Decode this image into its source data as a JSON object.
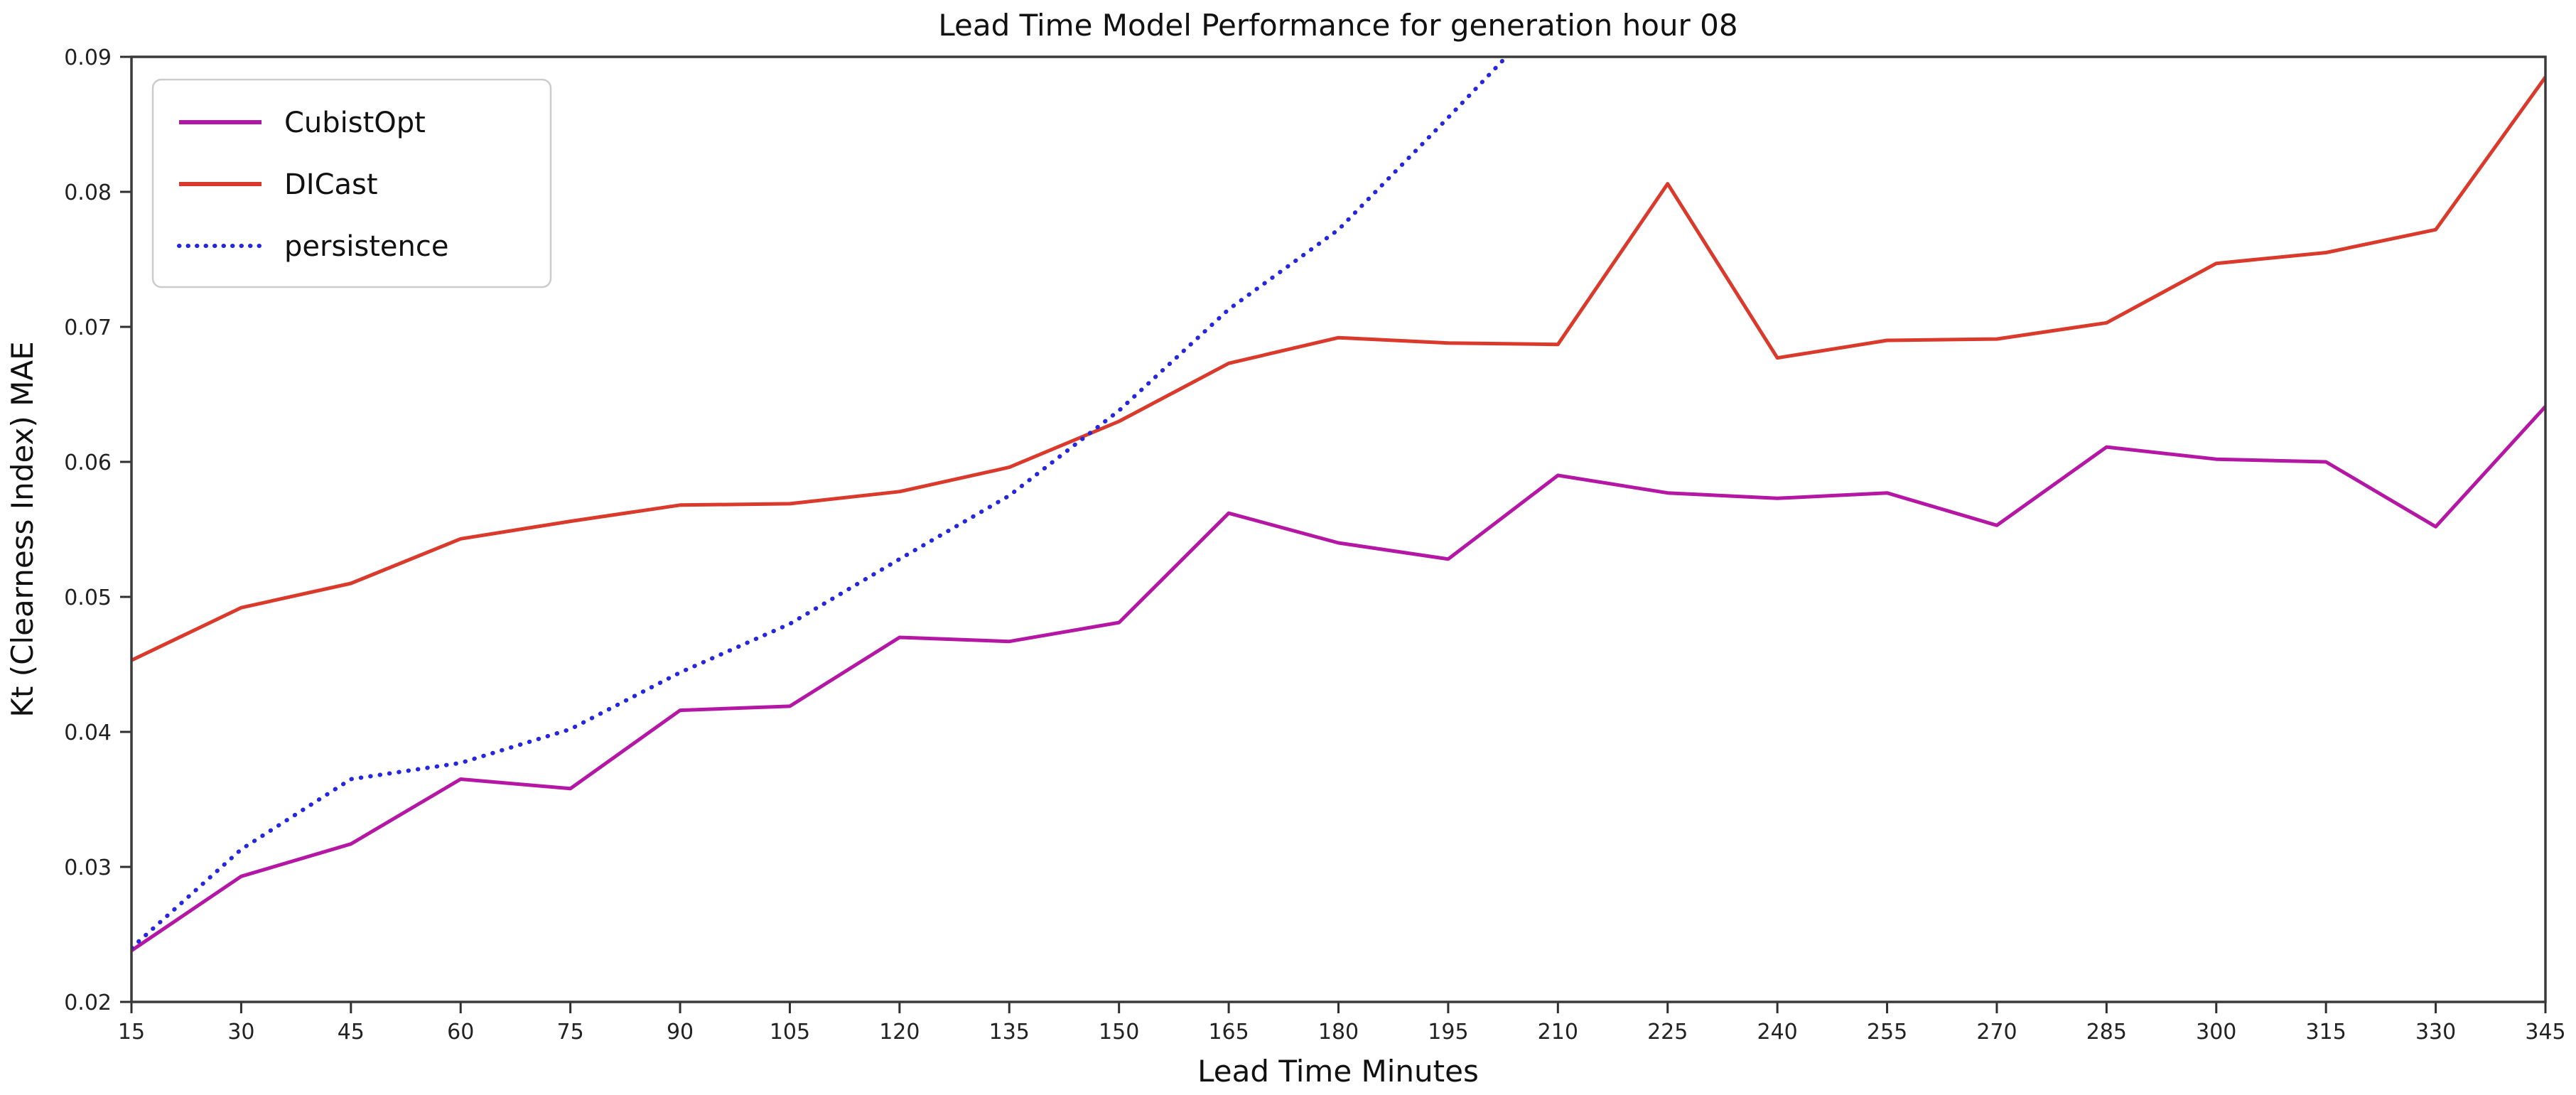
{
  "title": "Lead Time Model Performance for generation hour 08",
  "x_axis": {
    "label": "Lead Time Minutes",
    "ticks": [
      "15",
      "30",
      "45",
      "60",
      "75",
      "90",
      "105",
      "120",
      "135",
      "150",
      "165",
      "180",
      "195",
      "210",
      "225",
      "240",
      "255",
      "270",
      "285",
      "300",
      "315",
      "330",
      "345"
    ]
  },
  "y_axis": {
    "label": "Kt (Clearness Index) MAE",
    "ticks": [
      "0.02",
      "0.03",
      "0.04",
      "0.05",
      "0.06",
      "0.07",
      "0.08",
      "0.09"
    ]
  },
  "legend": {
    "position": "upper left",
    "entries": [
      "CubistOpt",
      "DICast",
      "persistence"
    ]
  },
  "chart_data": {
    "type": "line",
    "xlabel": "Lead Time Minutes",
    "ylabel": "Kt (Clearness Index) MAE",
    "xlim": [
      15,
      345
    ],
    "ylim": [
      0.02,
      0.09
    ],
    "grid": false,
    "x": [
      15,
      30,
      45,
      60,
      75,
      90,
      105,
      120,
      135,
      150,
      165,
      180,
      195,
      210,
      225,
      240,
      255,
      270,
      285,
      300,
      315,
      330,
      345
    ],
    "series": [
      {
        "name": "CubistOpt",
        "color": "#b517a5",
        "style": "solid",
        "values": [
          0.0238,
          0.0293,
          0.0317,
          0.0365,
          0.0358,
          0.0416,
          0.0419,
          0.047,
          0.0467,
          0.0481,
          0.0562,
          0.054,
          0.0528,
          0.059,
          0.0577,
          0.0573,
          0.0577,
          0.0553,
          0.0611,
          0.0602,
          0.06,
          0.0552,
          0.0641
        ]
      },
      {
        "name": "DICast",
        "color": "#d93a2b",
        "style": "solid",
        "values": [
          0.0453,
          0.0492,
          0.051,
          0.0543,
          0.0556,
          0.0568,
          0.0569,
          0.0578,
          0.0596,
          0.063,
          0.0673,
          0.0692,
          0.0688,
          0.0687,
          0.0806,
          0.0677,
          0.069,
          0.0691,
          0.0703,
          0.0747,
          0.0755,
          0.0772,
          0.0885
        ]
      },
      {
        "name": "persistence",
        "color": "#2626dd",
        "style": "dotted",
        "clipped_at_top": true,
        "values": [
          0.024,
          0.0313,
          0.0365,
          0.0377,
          0.0402,
          0.0444,
          0.048,
          0.0528,
          0.0575,
          0.0638,
          0.0713,
          0.0772,
          0.0855,
          0.094
        ]
      }
    ]
  }
}
